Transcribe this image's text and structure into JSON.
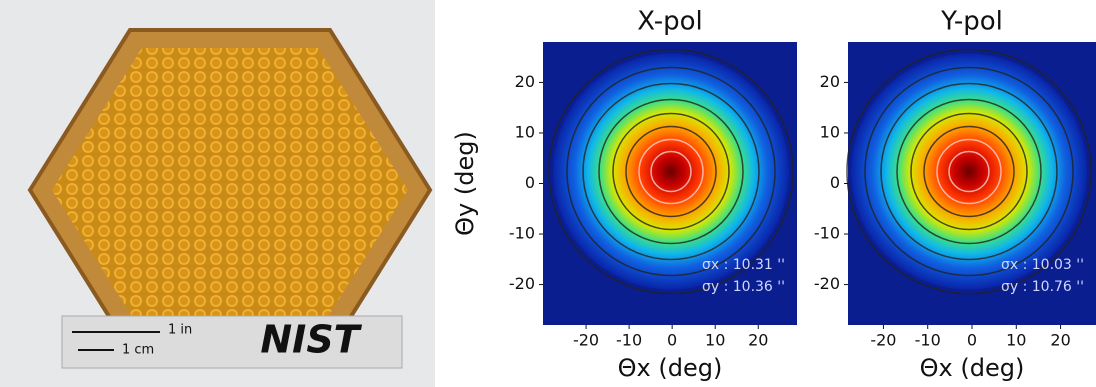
{
  "photo": {
    "scale_in": "1 in",
    "scale_cm": "1 cm",
    "logo": "NIST"
  },
  "chart_data": [
    {
      "type": "heatmap",
      "title": "X-pol",
      "xlabel": "Θx (deg)",
      "ylabel": "Θy (deg)",
      "xlim": [
        -30,
        29
      ],
      "ylim": [
        -28,
        28
      ],
      "xticks": [
        -20,
        -10,
        0,
        10,
        20
      ],
      "yticks": [
        -20,
        -10,
        0,
        10,
        20
      ],
      "annotations": [
        "σx : 10.31 ''",
        "σy : 10.36 ''"
      ]
    },
    {
      "type": "heatmap",
      "title": "Y-pol",
      "xlabel": "Θx (deg)",
      "xlim": [
        -28,
        28
      ],
      "ylim": [
        -28,
        28
      ],
      "xticks": [
        -20,
        -10,
        0,
        10,
        20
      ],
      "yticks": [
        -20,
        -10,
        0,
        10,
        20
      ],
      "annotations": [
        "σx : 10.03 ''",
        "σy : 10.76 ''"
      ]
    }
  ]
}
